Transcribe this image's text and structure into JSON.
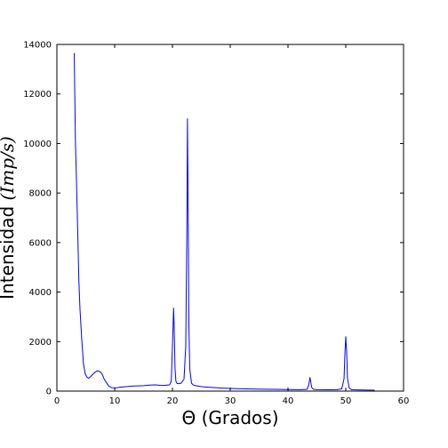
{
  "chart_data": {
    "type": "line",
    "title": "",
    "xlabel": "Θ (Grados)",
    "ylabel_text": "Intensidad ",
    "ylabel_math": "(Imp/s)",
    "xlim": [
      0,
      60
    ],
    "ylim": [
      0,
      14000
    ],
    "xticks": [
      0,
      10,
      20,
      30,
      40,
      50,
      60
    ],
    "yticks": [
      0,
      2000,
      4000,
      6000,
      8000,
      10000,
      12000,
      14000
    ],
    "grid": false,
    "legend": "none",
    "line_color": "#0000ff",
    "series": [
      {
        "x": [
          3.0,
          3.2,
          3.4,
          3.6,
          3.8,
          4.0,
          4.3,
          4.6,
          4.9,
          5.2,
          5.5,
          5.8,
          6.1,
          6.4,
          6.7,
          7.0,
          7.3,
          7.6,
          7.9,
          8.2,
          8.6,
          9.0,
          9.5,
          10.0,
          10.5,
          11.0,
          12.0,
          13.0,
          14.0,
          15.0,
          16.0,
          17.0,
          17.5,
          18.0,
          18.5,
          19.0,
          19.5,
          19.8,
          20.0,
          20.2,
          20.3,
          20.45,
          20.6,
          20.8,
          21.0,
          21.5,
          22.0,
          22.3,
          22.5,
          22.6,
          22.7,
          22.85,
          23.0,
          23.3,
          23.6,
          24.0,
          25.0,
          26.0,
          28.0,
          30.0,
          32.0,
          34.0,
          36.0,
          38.0,
          40.0,
          42.0,
          43.3,
          43.6,
          43.8,
          43.9,
          44.1,
          44.4,
          45.0,
          47.0,
          48.5,
          49.3,
          49.7,
          49.85,
          50.0,
          50.15,
          50.3,
          50.6,
          51.0,
          52.0,
          53.0,
          54.0,
          55.0
        ],
        "y": [
          13650,
          10200,
          8400,
          6500,
          4500,
          3300,
          2100,
          1100,
          700,
          560,
          520,
          580,
          650,
          720,
          780,
          820,
          800,
          760,
          650,
          480,
          330,
          200,
          140,
          130,
          140,
          160,
          180,
          200,
          210,
          220,
          240,
          250,
          240,
          230,
          230,
          240,
          250,
          400,
          1800,
          3350,
          2600,
          900,
          400,
          310,
          300,
          320,
          480,
          1800,
          6500,
          11000,
          8000,
          2600,
          900,
          320,
          250,
          220,
          180,
          160,
          130,
          110,
          95,
          85,
          75,
          70,
          65,
          60,
          70,
          250,
          550,
          430,
          150,
          70,
          60,
          55,
          60,
          90,
          500,
          1500,
          2200,
          1600,
          500,
          120,
          60,
          50,
          45,
          40,
          38
        ]
      }
    ]
  }
}
